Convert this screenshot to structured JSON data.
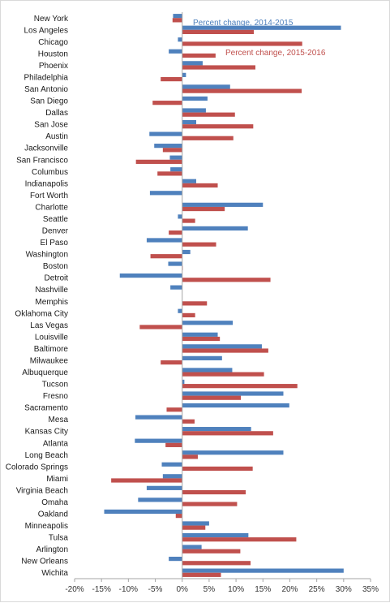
{
  "chart_data": {
    "type": "bar",
    "orientation": "horizontal",
    "categories": [
      "New York",
      "Los Angeles",
      "Chicago",
      "Houston",
      "Phoenix",
      "Philadelphia",
      "San Antonio",
      "San Diego",
      "Dallas",
      "San Jose",
      "Austin",
      "Jacksonville",
      "San Francisco",
      "Columbus",
      "Indianapolis",
      "Fort Worth",
      "Charlotte",
      "Seattle",
      "Denver",
      "El Paso",
      "Washington",
      "Boston",
      "Detroit",
      "Nashville",
      "Memphis",
      "Oklahoma City",
      "Las Vegas",
      "Louisville",
      "Baltimore",
      "Milwaukee",
      "Albuquerque",
      "Tucson",
      "Fresno",
      "Sacramento",
      "Mesa",
      "Kansas City",
      "Atlanta",
      "Long Beach",
      "Colorado Springs",
      "Miami",
      "Virginia Beach",
      "Omaha",
      "Oakland",
      "Minneapolis",
      "Tulsa",
      "Arlington",
      "New Orleans",
      "Wichita"
    ],
    "series": [
      {
        "name": "Percent change, 2014-2015",
        "color": "#4f81bd",
        "values": [
          -1.7,
          29.5,
          -0.8,
          -2.5,
          3.8,
          0.7,
          8.9,
          4.7,
          4.4,
          2.6,
          -6.1,
          -5.2,
          -2.3,
          -2.2,
          2.6,
          -6.0,
          15.0,
          -0.8,
          12.2,
          -6.6,
          1.5,
          -2.6,
          -11.6,
          -2.2,
          0.0,
          -0.8,
          9.4,
          6.6,
          14.8,
          7.4,
          9.3,
          0.4,
          18.8,
          19.9,
          -8.7,
          12.8,
          -8.8,
          18.8,
          -3.8,
          -3.6,
          -6.6,
          -8.2,
          -14.5,
          5.0,
          12.3,
          3.6,
          -2.5,
          30.0
        ]
      },
      {
        "name": "Percent change, 2015-2016",
        "color": "#c0504d",
        "values": [
          -1.8,
          13.3,
          22.3,
          6.2,
          13.6,
          -4.0,
          22.2,
          -5.5,
          9.8,
          13.2,
          9.5,
          -3.6,
          -8.6,
          -4.6,
          6.6,
          0.0,
          7.9,
          2.4,
          -2.5,
          6.3,
          -5.9,
          0.1,
          16.4,
          0.0,
          4.6,
          2.4,
          -7.9,
          7.0,
          16.0,
          -4.0,
          15.2,
          21.4,
          10.9,
          -2.9,
          2.3,
          16.9,
          -3.1,
          2.9,
          13.1,
          -13.2,
          11.8,
          10.2,
          -1.2,
          4.3,
          21.2,
          10.8,
          12.7,
          7.2
        ]
      }
    ],
    "xlim": [
      -20,
      35
    ],
    "x_ticks": [
      "-20%",
      "-15%",
      "-10%",
      "-5%",
      "0%",
      "5%",
      "10%",
      "15%",
      "20%",
      "25%",
      "30%",
      "35%"
    ],
    "title": "",
    "xlabel": "",
    "ylabel": "",
    "grid": false,
    "legend": "inline labels near top"
  }
}
